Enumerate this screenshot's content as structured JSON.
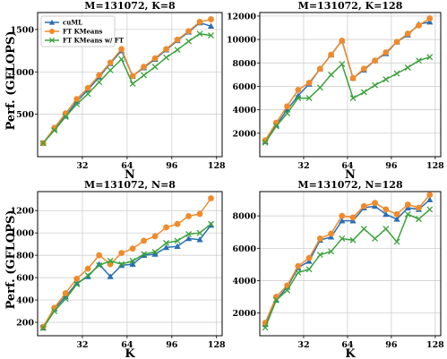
{
  "figure": {
    "ylabel": "Perf. (GFLOPS)",
    "colors": {
      "cuml": "#2a6fb5",
      "ftk": "#f08a2b",
      "ftkft": "#3aa23a",
      "grid": "#c8c8c8"
    }
  },
  "chart_data": [
    {
      "type": "line",
      "title": "M=131072, K=8",
      "xlabel": "N",
      "xlim": [
        0,
        132
      ],
      "ylim": [
        0,
        1700
      ],
      "xticks": [
        32,
        64,
        96,
        128
      ],
      "yticks": [
        500,
        1000,
        1500
      ],
      "legend": "top-left",
      "series": [
        {
          "name": "cuML",
          "marker": "triangle",
          "color": "#2a6fb5",
          "x": [
            4,
            12,
            20,
            28,
            36,
            44,
            52,
            60,
            68,
            76,
            84,
            92,
            100,
            108,
            116,
            124
          ],
          "y": [
            160,
            330,
            480,
            650,
            790,
            940,
            1100,
            1250,
            950,
            1050,
            1150,
            1260,
            1370,
            1470,
            1580,
            1540
          ]
        },
        {
          "name": "FT KMeans",
          "marker": "circle",
          "color": "#f08a2b",
          "x": [
            4,
            12,
            20,
            28,
            36,
            44,
            52,
            60,
            68,
            76,
            84,
            92,
            100,
            108,
            116,
            124
          ],
          "y": [
            160,
            340,
            510,
            680,
            810,
            960,
            1110,
            1270,
            950,
            1060,
            1160,
            1270,
            1380,
            1480,
            1590,
            1620
          ]
        },
        {
          "name": "FT KMeans w/ FT",
          "marker": "x",
          "color": "#3aa23a",
          "x": [
            4,
            12,
            20,
            28,
            36,
            44,
            52,
            60,
            68,
            76,
            84,
            92,
            100,
            108,
            116,
            124
          ],
          "y": [
            160,
            310,
            470,
            620,
            740,
            880,
            1020,
            1150,
            860,
            960,
            1060,
            1170,
            1260,
            1360,
            1450,
            1430
          ]
        }
      ]
    },
    {
      "type": "line",
      "title": "M=131072, K=128",
      "xlabel": "N",
      "xlim": [
        0,
        132
      ],
      "ylim": [
        0,
        12300
      ],
      "xticks": [
        32,
        64,
        96,
        128
      ],
      "yticks": [
        2000,
        4000,
        6000,
        8000,
        10000,
        12000
      ],
      "series": [
        {
          "name": "cuML",
          "marker": "triangle",
          "color": "#2a6fb5",
          "x": [
            4,
            12,
            20,
            28,
            36,
            44,
            52,
            60,
            68,
            76,
            84,
            92,
            100,
            108,
            116,
            124
          ],
          "y": [
            1300,
            2700,
            4000,
            5200,
            6200,
            7500,
            8700,
            9900,
            6700,
            7400,
            8200,
            8800,
            9800,
            10400,
            11300,
            11500
          ]
        },
        {
          "name": "FT KMeans",
          "marker": "circle",
          "color": "#f08a2b",
          "x": [
            4,
            12,
            20,
            28,
            36,
            44,
            52,
            60,
            68,
            76,
            84,
            92,
            100,
            108,
            116,
            124
          ],
          "y": [
            1400,
            2900,
            4300,
            5700,
            6300,
            7500,
            8700,
            9900,
            6700,
            7500,
            8200,
            8900,
            9800,
            10500,
            11200,
            11800
          ]
        },
        {
          "name": "FT KMeans w/ FT",
          "marker": "x",
          "color": "#3aa23a",
          "x": [
            4,
            12,
            20,
            28,
            36,
            44,
            52,
            60,
            68,
            76,
            84,
            92,
            100,
            108,
            116,
            124
          ],
          "y": [
            1200,
            2600,
            3700,
            5000,
            5000,
            5900,
            7000,
            7900,
            5000,
            5500,
            6100,
            6600,
            7100,
            7600,
            8200,
            8500
          ]
        }
      ]
    },
    {
      "type": "line",
      "title": "M=131072, N=8",
      "xlabel": "K",
      "xlim": [
        0,
        132
      ],
      "ylim": [
        80,
        1370
      ],
      "xticks": [
        32,
        64,
        96,
        128
      ],
      "yticks": [
        200,
        400,
        600,
        800,
        1000,
        1200
      ],
      "series": [
        {
          "name": "cuML",
          "marker": "triangle",
          "color": "#2a6fb5",
          "x": [
            4,
            12,
            20,
            28,
            36,
            44,
            52,
            60,
            68,
            76,
            84,
            92,
            100,
            108,
            116,
            124
          ],
          "y": [
            150,
            320,
            430,
            550,
            610,
            720,
            610,
            710,
            720,
            800,
            810,
            870,
            880,
            950,
            940,
            1070
          ]
        },
        {
          "name": "FT KMeans",
          "marker": "circle",
          "color": "#f08a2b",
          "x": [
            4,
            12,
            20,
            28,
            36,
            44,
            52,
            60,
            68,
            76,
            84,
            92,
            100,
            108,
            116,
            124
          ],
          "y": [
            160,
            330,
            460,
            590,
            680,
            800,
            720,
            820,
            860,
            930,
            970,
            1050,
            1080,
            1150,
            1170,
            1310
          ]
        },
        {
          "name": "FT KMeans w/ FT",
          "marker": "x",
          "color": "#3aa23a",
          "x": [
            4,
            12,
            20,
            28,
            36,
            44,
            52,
            60,
            68,
            76,
            84,
            92,
            100,
            108,
            116,
            124
          ],
          "y": [
            150,
            300,
            410,
            540,
            620,
            710,
            750,
            720,
            750,
            810,
            830,
            910,
            930,
            990,
            1000,
            1080
          ]
        }
      ]
    },
    {
      "type": "line",
      "title": "M=131072, N=128",
      "xlabel": "K",
      "xlim": [
        0,
        132
      ],
      "ylim": [
        600,
        9500
      ],
      "xticks": [
        32,
        64,
        96,
        128
      ],
      "yticks": [
        2000,
        4000,
        6000,
        8000
      ],
      "series": [
        {
          "name": "cuML",
          "marker": "triangle",
          "color": "#2a6fb5",
          "x": [
            4,
            12,
            20,
            28,
            36,
            44,
            52,
            60,
            68,
            76,
            84,
            92,
            100,
            108,
            116,
            124
          ],
          "y": [
            1300,
            2800,
            3600,
            4800,
            5200,
            6500,
            6700,
            7700,
            7700,
            8500,
            8600,
            8100,
            7800,
            8500,
            8400,
            9000
          ]
        },
        {
          "name": "FT KMeans",
          "marker": "circle",
          "color": "#f08a2b",
          "x": [
            4,
            12,
            20,
            28,
            36,
            44,
            52,
            60,
            68,
            76,
            84,
            92,
            100,
            108,
            116,
            124
          ],
          "y": [
            1400,
            3000,
            3700,
            4900,
            5400,
            6600,
            6900,
            8000,
            7900,
            8600,
            8800,
            8400,
            8100,
            8700,
            8500,
            9300
          ]
        },
        {
          "name": "FT KMeans w/ FT",
          "marker": "x",
          "color": "#3aa23a",
          "x": [
            4,
            12,
            20,
            28,
            36,
            44,
            52,
            60,
            68,
            76,
            84,
            92,
            100,
            108,
            116,
            124
          ],
          "y": [
            1100,
            2800,
            3400,
            4500,
            4700,
            5600,
            5800,
            6600,
            6500,
            7200,
            6600,
            7200,
            6400,
            8100,
            7800,
            8400
          ]
        }
      ]
    }
  ]
}
